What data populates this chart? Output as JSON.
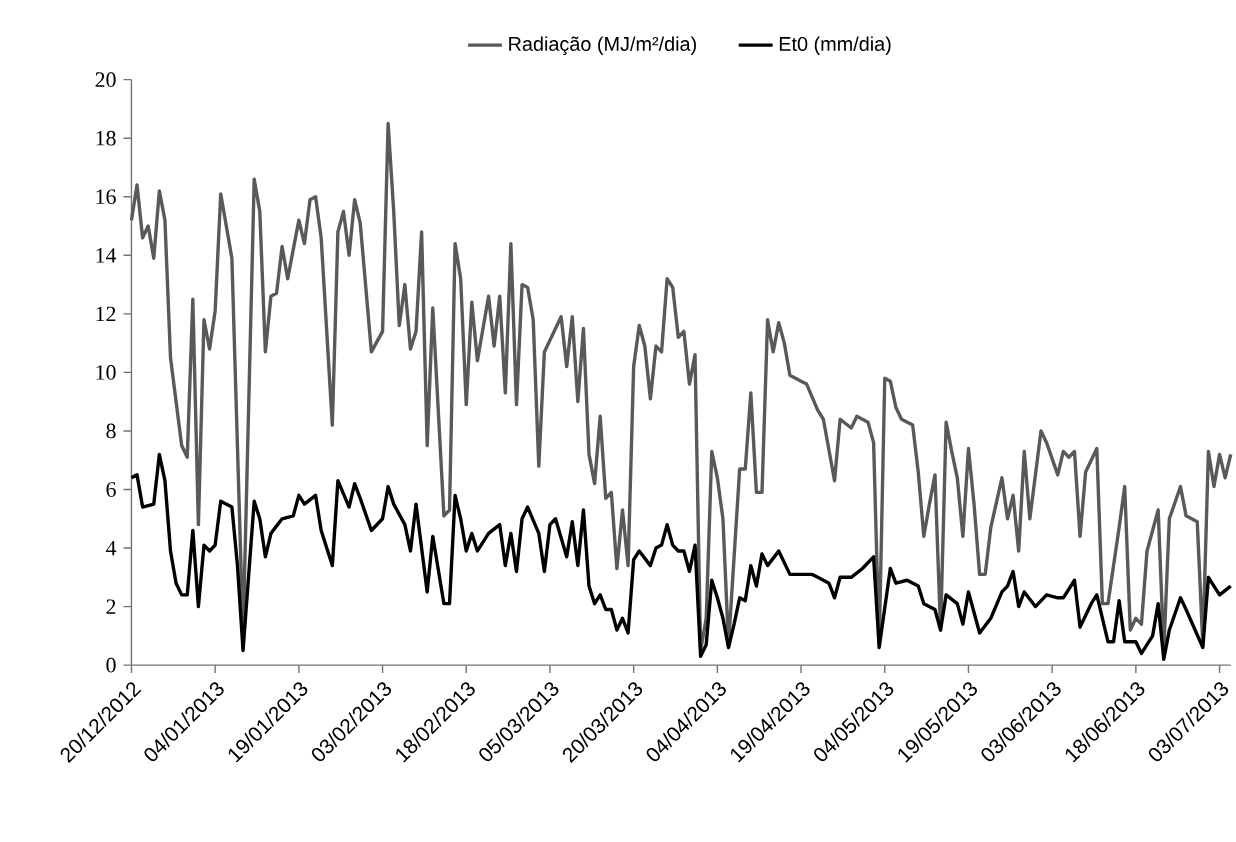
{
  "chart_data": {
    "type": "line",
    "legend": "top",
    "xlim": [
      "2012-12-20",
      "2013-07-05"
    ],
    "xticks": [
      {
        "value": "2012-12-20",
        "label": "20/12/2012"
      },
      {
        "value": "2013-01-04",
        "label": "04/01/2013"
      },
      {
        "value": "2013-01-19",
        "label": "19/01/2013"
      },
      {
        "value": "2013-02-03",
        "label": "03/02/2013"
      },
      {
        "value": "2013-02-18",
        "label": "18/02/2013"
      },
      {
        "value": "2013-03-05",
        "label": "05/03/2013"
      },
      {
        "value": "2013-03-20",
        "label": "20/03/2013"
      },
      {
        "value": "2013-04-04",
        "label": "04/04/2013"
      },
      {
        "value": "2013-04-19",
        "label": "19/04/2013"
      },
      {
        "value": "2013-05-04",
        "label": "04/05/2013"
      },
      {
        "value": "2013-05-19",
        "label": "19/05/2013"
      },
      {
        "value": "2013-06-03",
        "label": "03/06/2013"
      },
      {
        "value": "2013-06-18",
        "label": "18/06/2013"
      },
      {
        "value": "2013-07-03",
        "label": "03/07/2013"
      }
    ],
    "ylim": [
      0,
      20
    ],
    "yticks": [
      0,
      2,
      4,
      6,
      8,
      10,
      12,
      14,
      16,
      18,
      20
    ],
    "series": [
      {
        "name": "Radiação (MJ/m²/dia)",
        "color": "#595959",
        "x": [
          "2012-12-20",
          "2012-12-21",
          "2012-12-22",
          "2012-12-23",
          "2012-12-24",
          "2012-12-25",
          "2012-12-26",
          "2012-12-27",
          "2012-12-29",
          "2012-12-30",
          "2012-12-31",
          "2013-01-01",
          "2013-01-02",
          "2013-01-03",
          "2013-01-04",
          "2013-01-05",
          "2013-01-07",
          "2013-01-09",
          "2013-01-11",
          "2013-01-12",
          "2013-01-13",
          "2013-01-14",
          "2013-01-15",
          "2013-01-16",
          "2013-01-17",
          "2013-01-19",
          "2013-01-20",
          "2013-01-21",
          "2013-01-22",
          "2013-01-23",
          "2013-01-25",
          "2013-01-26",
          "2013-01-27",
          "2013-01-28",
          "2013-01-29",
          "2013-01-30",
          "2013-02-01",
          "2013-02-03",
          "2013-02-04",
          "2013-02-05",
          "2013-02-06",
          "2013-02-07",
          "2013-02-08",
          "2013-02-09",
          "2013-02-10",
          "2013-02-11",
          "2013-02-12",
          "2013-02-14",
          "2013-02-15",
          "2013-02-16",
          "2013-02-17",
          "2013-02-18",
          "2013-02-19",
          "2013-02-20",
          "2013-02-22",
          "2013-02-23",
          "2013-02-24",
          "2013-02-25",
          "2013-02-26",
          "2013-02-27",
          "2013-02-28",
          "2013-03-01",
          "2013-03-02",
          "2013-03-03",
          "2013-03-04",
          "2013-03-07",
          "2013-03-08",
          "2013-03-09",
          "2013-03-10",
          "2013-03-11",
          "2013-03-12",
          "2013-03-13",
          "2013-03-14",
          "2013-03-15",
          "2013-03-16",
          "2013-03-17",
          "2013-03-18",
          "2013-03-19",
          "2013-03-20",
          "2013-03-21",
          "2013-03-22",
          "2013-03-23",
          "2013-03-24",
          "2013-03-25",
          "2013-03-26",
          "2013-03-27",
          "2013-03-28",
          "2013-03-29",
          "2013-03-30",
          "2013-03-31",
          "2013-04-01",
          "2013-04-02",
          "2013-04-03",
          "2013-04-04",
          "2013-04-05",
          "2013-04-06",
          "2013-04-07",
          "2013-04-08",
          "2013-04-09",
          "2013-04-10",
          "2013-04-11",
          "2013-04-12",
          "2013-04-13",
          "2013-04-14",
          "2013-04-15",
          "2013-04-16",
          "2013-04-17",
          "2013-04-19",
          "2013-04-20",
          "2013-04-22",
          "2013-04-23",
          "2013-04-25",
          "2013-04-26",
          "2013-04-28",
          "2013-04-29",
          "2013-05-01",
          "2013-05-02",
          "2013-05-03",
          "2013-05-04",
          "2013-05-05",
          "2013-05-06",
          "2013-05-07",
          "2013-05-09",
          "2013-05-10",
          "2013-05-11",
          "2013-05-12",
          "2013-05-13",
          "2013-05-14",
          "2013-05-15",
          "2013-05-16",
          "2013-05-17",
          "2013-05-18",
          "2013-05-19",
          "2013-05-20",
          "2013-05-21",
          "2013-05-22",
          "2013-05-23",
          "2013-05-25",
          "2013-05-26",
          "2013-05-27",
          "2013-05-28",
          "2013-05-29",
          "2013-05-30",
          "2013-06-01",
          "2013-06-02",
          "2013-06-04",
          "2013-06-05",
          "2013-06-06",
          "2013-06-07",
          "2013-06-08",
          "2013-06-09",
          "2013-06-11",
          "2013-06-12",
          "2013-06-13",
          "2013-06-15",
          "2013-06-16",
          "2013-06-17",
          "2013-06-18",
          "2013-06-19",
          "2013-06-20",
          "2013-06-22",
          "2013-06-23",
          "2013-06-24",
          "2013-06-26",
          "2013-06-27",
          "2013-06-29",
          "2013-06-30",
          "2013-07-01",
          "2013-07-02",
          "2013-07-03",
          "2013-07-04",
          "2013-07-05"
        ],
        "values": [
          15.2,
          16.4,
          14.6,
          15.0,
          13.9,
          16.2,
          15.2,
          10.5,
          7.5,
          7.1,
          12.5,
          4.8,
          11.8,
          10.8,
          12.1,
          16.1,
          13.9,
          1.0,
          16.6,
          15.5,
          10.7,
          12.6,
          12.7,
          14.3,
          13.2,
          15.2,
          14.4,
          15.9,
          16.0,
          14.6,
          8.2,
          14.8,
          15.5,
          14.0,
          15.9,
          15.1,
          10.7,
          11.4,
          18.5,
          15.5,
          11.6,
          13.0,
          10.8,
          11.4,
          14.8,
          7.5,
          12.2,
          5.1,
          5.3,
          14.4,
          13.2,
          8.9,
          12.4,
          10.4,
          12.6,
          10.9,
          12.6,
          9.3,
          14.4,
          8.9,
          13.0,
          12.9,
          11.8,
          6.8,
          10.7,
          11.9,
          10.2,
          11.9,
          9.0,
          11.5,
          7.2,
          6.2,
          8.5,
          5.7,
          5.9,
          3.3,
          5.3,
          3.4,
          10.2,
          11.6,
          10.9,
          9.1,
          10.9,
          10.7,
          13.2,
          12.9,
          11.2,
          11.4,
          9.6,
          10.6,
          0.5,
          1.6,
          7.3,
          6.4,
          5.0,
          0.7,
          3.7,
          6.7,
          6.7,
          9.3,
          5.9,
          5.9,
          11.8,
          10.7,
          11.7,
          11.0,
          9.9,
          9.7,
          9.6,
          8.7,
          8.4,
          6.3,
          8.4,
          8.1,
          8.5,
          8.3,
          7.6,
          0.7,
          9.8,
          9.7,
          8.8,
          8.4,
          8.2,
          6.6,
          4.4,
          5.5,
          6.5,
          1.2,
          8.3,
          7.3,
          6.4,
          4.4,
          7.4,
          5.5,
          3.1,
          3.1,
          4.7,
          6.4,
          5.0,
          5.8,
          3.9,
          7.3,
          5.0,
          8.0,
          7.6,
          6.5,
          7.3,
          7.1,
          7.3,
          4.4,
          6.6,
          7.4,
          2.1,
          2.1,
          4.7,
          6.1,
          1.2,
          1.6,
          1.4,
          3.9,
          5.3,
          0.5,
          5.0,
          6.1,
          5.1,
          4.9,
          0.7,
          7.3,
          6.1,
          7.2,
          6.4,
          7.2
        ]
      },
      {
        "name": "Et0 (mm/dia)",
        "color": "#000000",
        "x": [
          "2012-12-20",
          "2012-12-21",
          "2012-12-22",
          "2012-12-24",
          "2012-12-25",
          "2012-12-26",
          "2012-12-27",
          "2012-12-28",
          "2012-12-29",
          "2012-12-30",
          "2012-12-31",
          "2013-01-01",
          "2013-01-02",
          "2013-01-03",
          "2013-01-04",
          "2013-01-05",
          "2013-01-07",
          "2013-01-08",
          "2013-01-09",
          "2013-01-11",
          "2013-01-12",
          "2013-01-13",
          "2013-01-14",
          "2013-01-16",
          "2013-01-18",
          "2013-01-19",
          "2013-01-20",
          "2013-01-22",
          "2013-01-23",
          "2013-01-25",
          "2013-01-26",
          "2013-01-28",
          "2013-01-29",
          "2013-01-30",
          "2013-02-01",
          "2013-02-03",
          "2013-02-04",
          "2013-02-05",
          "2013-02-07",
          "2013-02-08",
          "2013-02-09",
          "2013-02-11",
          "2013-02-12",
          "2013-02-14",
          "2013-02-15",
          "2013-02-16",
          "2013-02-17",
          "2013-02-18",
          "2013-02-19",
          "2013-02-20",
          "2013-02-22",
          "2013-02-24",
          "2013-02-25",
          "2013-02-26",
          "2013-02-27",
          "2013-02-28",
          "2013-03-01",
          "2013-03-03",
          "2013-03-04",
          "2013-03-05",
          "2013-03-06",
          "2013-03-08",
          "2013-03-09",
          "2013-03-10",
          "2013-03-11",
          "2013-03-12",
          "2013-03-13",
          "2013-03-14",
          "2013-03-15",
          "2013-03-16",
          "2013-03-17",
          "2013-03-18",
          "2013-03-19",
          "2013-03-20",
          "2013-03-21",
          "2013-03-23",
          "2013-03-24",
          "2013-03-25",
          "2013-03-26",
          "2013-03-27",
          "2013-03-28",
          "2013-03-29",
          "2013-03-30",
          "2013-03-31",
          "2013-04-01",
          "2013-04-02",
          "2013-04-03",
          "2013-04-04",
          "2013-04-05",
          "2013-04-06",
          "2013-04-07",
          "2013-04-08",
          "2013-04-09",
          "2013-04-10",
          "2013-04-11",
          "2013-04-12",
          "2013-04-13",
          "2013-04-15",
          "2013-04-17",
          "2013-04-19",
          "2013-04-21",
          "2013-04-22",
          "2013-04-24",
          "2013-04-25",
          "2013-04-26",
          "2013-04-28",
          "2013-04-30",
          "2013-05-02",
          "2013-05-03",
          "2013-05-05",
          "2013-05-06",
          "2013-05-08",
          "2013-05-10",
          "2013-05-11",
          "2013-05-13",
          "2013-05-14",
          "2013-05-15",
          "2013-05-17",
          "2013-05-18",
          "2013-05-19",
          "2013-05-21",
          "2013-05-23",
          "2013-05-25",
          "2013-05-26",
          "2013-05-27",
          "2013-05-28",
          "2013-05-29",
          "2013-05-31",
          "2013-06-02",
          "2013-06-04",
          "2013-06-05",
          "2013-06-07",
          "2013-06-08",
          "2013-06-10",
          "2013-06-11",
          "2013-06-13",
          "2013-06-14",
          "2013-06-15",
          "2013-06-16",
          "2013-06-18",
          "2013-06-19",
          "2013-06-21",
          "2013-06-22",
          "2013-06-23",
          "2013-06-24",
          "2013-06-26",
          "2013-06-27",
          "2013-06-30",
          "2013-07-01",
          "2013-07-03",
          "2013-07-05"
        ],
        "values": [
          6.4,
          6.5,
          5.4,
          5.5,
          7.2,
          6.3,
          3.9,
          2.8,
          2.4,
          2.4,
          4.6,
          2.0,
          4.1,
          3.9,
          4.1,
          5.6,
          5.4,
          3.4,
          0.5,
          5.6,
          5.0,
          3.7,
          4.5,
          5.0,
          5.1,
          5.8,
          5.5,
          5.8,
          4.6,
          3.4,
          6.3,
          5.4,
          6.2,
          5.7,
          4.6,
          5.0,
          6.1,
          5.5,
          4.8,
          3.9,
          5.5,
          2.5,
          4.4,
          2.1,
          2.1,
          5.8,
          5.0,
          3.9,
          4.5,
          3.9,
          4.5,
          4.8,
          3.4,
          4.5,
          3.2,
          5.0,
          5.4,
          4.5,
          3.2,
          4.8,
          5.0,
          3.7,
          4.9,
          3.4,
          5.3,
          2.7,
          2.1,
          2.4,
          1.9,
          1.9,
          1.2,
          1.6,
          1.1,
          3.6,
          3.9,
          3.4,
          4.0,
          4.1,
          4.8,
          4.1,
          3.9,
          3.9,
          3.2,
          4.1,
          0.3,
          0.7,
          2.9,
          2.3,
          1.6,
          0.6,
          1.4,
          2.3,
          2.2,
          3.4,
          2.7,
          3.8,
          3.4,
          3.9,
          3.1,
          3.1,
          3.1,
          3.0,
          2.8,
          2.3,
          3.0,
          3.0,
          3.3,
          3.7,
          0.6,
          3.3,
          2.8,
          2.9,
          2.7,
          2.1,
          1.9,
          1.2,
          2.4,
          2.1,
          1.4,
          2.5,
          1.1,
          1.6,
          2.5,
          2.7,
          3.2,
          2.0,
          2.5,
          2.0,
          2.4,
          2.3,
          2.3,
          2.9,
          1.3,
          2.1,
          2.4,
          0.8,
          0.8,
          2.2,
          0.8,
          0.8,
          0.4,
          1.0,
          2.1,
          0.2,
          1.2,
          2.3,
          1.9,
          0.6,
          3.0,
          2.4,
          2.7
        ]
      }
    ]
  }
}
